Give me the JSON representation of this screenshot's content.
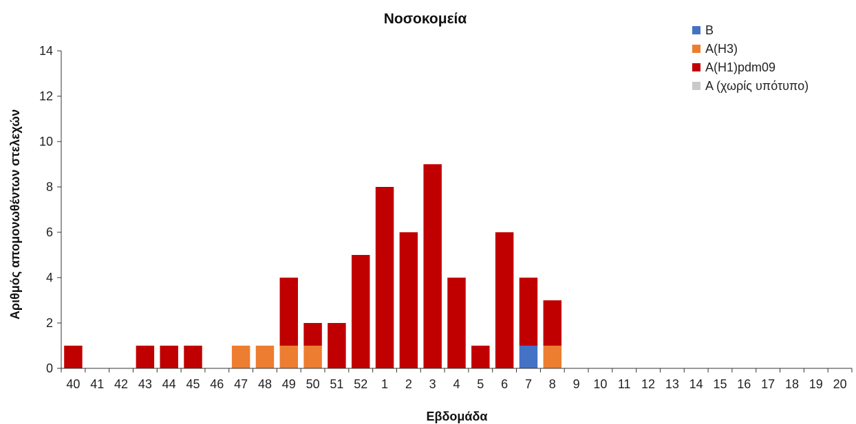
{
  "chart_data": {
    "type": "bar",
    "stacked": true,
    "title": "Νοσοκομεία",
    "xlabel": "Εβδομάδα",
    "ylabel": "Αριθμός απομονωθέντων στελεχών",
    "ylim": [
      0,
      14
    ],
    "yticks": [
      "0",
      "2",
      "4",
      "6",
      "8",
      "10",
      "12",
      "14"
    ],
    "grid": false,
    "legend_position": "top-right",
    "categories": [
      "40",
      "41",
      "42",
      "43",
      "44",
      "45",
      "46",
      "47",
      "48",
      "49",
      "50",
      "51",
      "52",
      "1",
      "2",
      "3",
      "4",
      "5",
      "6",
      "7",
      "8",
      "9",
      "10",
      "11",
      "12",
      "13",
      "14",
      "15",
      "16",
      "17",
      "18",
      "19",
      "20"
    ],
    "series": [
      {
        "name": "B",
        "color": "#4472c4",
        "values": [
          0,
          0,
          0,
          0,
          0,
          0,
          0,
          0,
          0,
          0,
          0,
          0,
          0,
          0,
          0,
          0,
          0,
          0,
          0,
          1,
          0,
          0,
          0,
          0,
          0,
          0,
          0,
          0,
          0,
          0,
          0,
          0,
          0
        ]
      },
      {
        "name": "A(H3)",
        "color": "#ed7d31",
        "values": [
          0,
          0,
          0,
          0,
          0,
          0,
          0,
          1,
          1,
          1,
          1,
          0,
          0,
          0,
          0,
          0,
          0,
          0,
          0,
          0,
          1,
          0,
          0,
          0,
          0,
          0,
          0,
          0,
          0,
          0,
          0,
          0,
          0
        ]
      },
      {
        "name": "A(H1)pdm09",
        "color": "#c00000",
        "values": [
          1,
          0,
          0,
          1,
          1,
          1,
          0,
          0,
          0,
          3,
          1,
          2,
          5,
          8,
          6,
          9,
          4,
          1,
          6,
          3,
          2,
          0,
          0,
          0,
          0,
          0,
          0,
          0,
          0,
          0,
          0,
          0,
          0
        ]
      },
      {
        "name": "A (χωρίς υπότυπο)",
        "color": "#c9c9c9",
        "values": [
          0,
          0,
          0,
          0,
          0,
          0,
          0,
          0,
          0,
          0,
          0,
          0,
          0,
          0,
          0,
          0,
          0,
          0,
          0,
          0,
          0,
          0,
          0,
          0,
          0,
          0,
          0,
          0,
          0,
          0,
          0,
          0,
          0
        ]
      }
    ]
  }
}
